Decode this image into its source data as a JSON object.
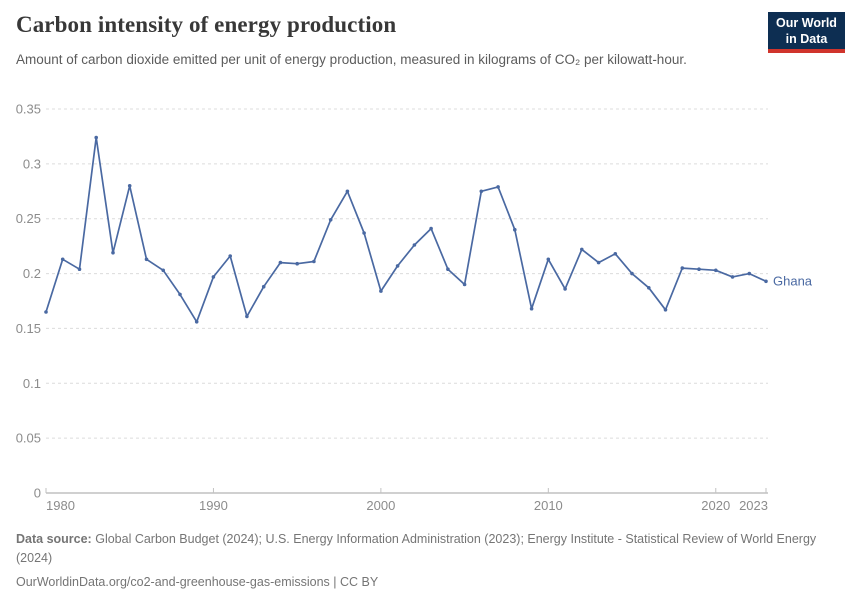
{
  "header": {
    "title": "Carbon intensity of energy production",
    "subtitle": "Amount of carbon dioxide emitted per unit of energy production, measured in kilograms of CO₂ per kilowatt-hour.",
    "logo": {
      "line1": "Our World",
      "line2": "in Data",
      "bg_color": "#0d2e52",
      "accent_color": "#d0342c"
    }
  },
  "chart_data": {
    "type": "line",
    "title": "Carbon intensity of energy production",
    "unit": "kilograms of CO₂ per kilowatt-hour",
    "xlim": [
      1980,
      2023
    ],
    "ylim": [
      0,
      0.35
    ],
    "grid": "horizontal-dashed",
    "legend": "series-end-label",
    "x_tick_years": [
      1980,
      1990,
      2000,
      2010,
      2020,
      2023
    ],
    "x_tick_labels": [
      "1980",
      "1990",
      "2000",
      "2010",
      "2020",
      "2023"
    ],
    "y_tick_values": [
      0,
      0.05,
      0.1,
      0.15,
      0.2,
      0.25,
      0.3,
      0.35
    ],
    "y_tick_labels": [
      "0",
      "0.05",
      "0.1",
      "0.15",
      "0.2",
      "0.25",
      "0.3",
      "0.35"
    ],
    "series": [
      {
        "name": "Ghana",
        "color": "#4a69a2",
        "x": [
          1980,
          1981,
          1982,
          1983,
          1984,
          1985,
          1986,
          1987,
          1988,
          1989,
          1990,
          1991,
          1992,
          1993,
          1994,
          1995,
          1996,
          1997,
          1998,
          1999,
          2000,
          2001,
          2002,
          2003,
          2004,
          2005,
          2006,
          2007,
          2008,
          2009,
          2010,
          2011,
          2012,
          2013,
          2014,
          2015,
          2016,
          2017,
          2018,
          2019,
          2020,
          2021,
          2022,
          2023
        ],
        "values": [
          0.165,
          0.213,
          0.204,
          0.324,
          0.219,
          0.28,
          0.213,
          0.203,
          0.181,
          0.156,
          0.197,
          0.216,
          0.161,
          0.188,
          0.21,
          0.209,
          0.211,
          0.249,
          0.275,
          0.237,
          0.184,
          0.207,
          0.226,
          0.241,
          0.204,
          0.19,
          0.275,
          0.279,
          0.24,
          0.168,
          0.213,
          0.186,
          0.222,
          0.21,
          0.218,
          0.2,
          0.187,
          0.167,
          0.205,
          0.204,
          0.203,
          0.197,
          0.2,
          0.193
        ]
      }
    ]
  },
  "footer": {
    "data_source_label": "Data source:",
    "data_source_text": "Global Carbon Budget (2024); U.S. Energy Information Administration (2023); Energy Institute - Statistical Review of World Energy (2024)",
    "citation": "OurWorldinData.org/co2-and-greenhouse-gas-emissions | CC BY"
  }
}
